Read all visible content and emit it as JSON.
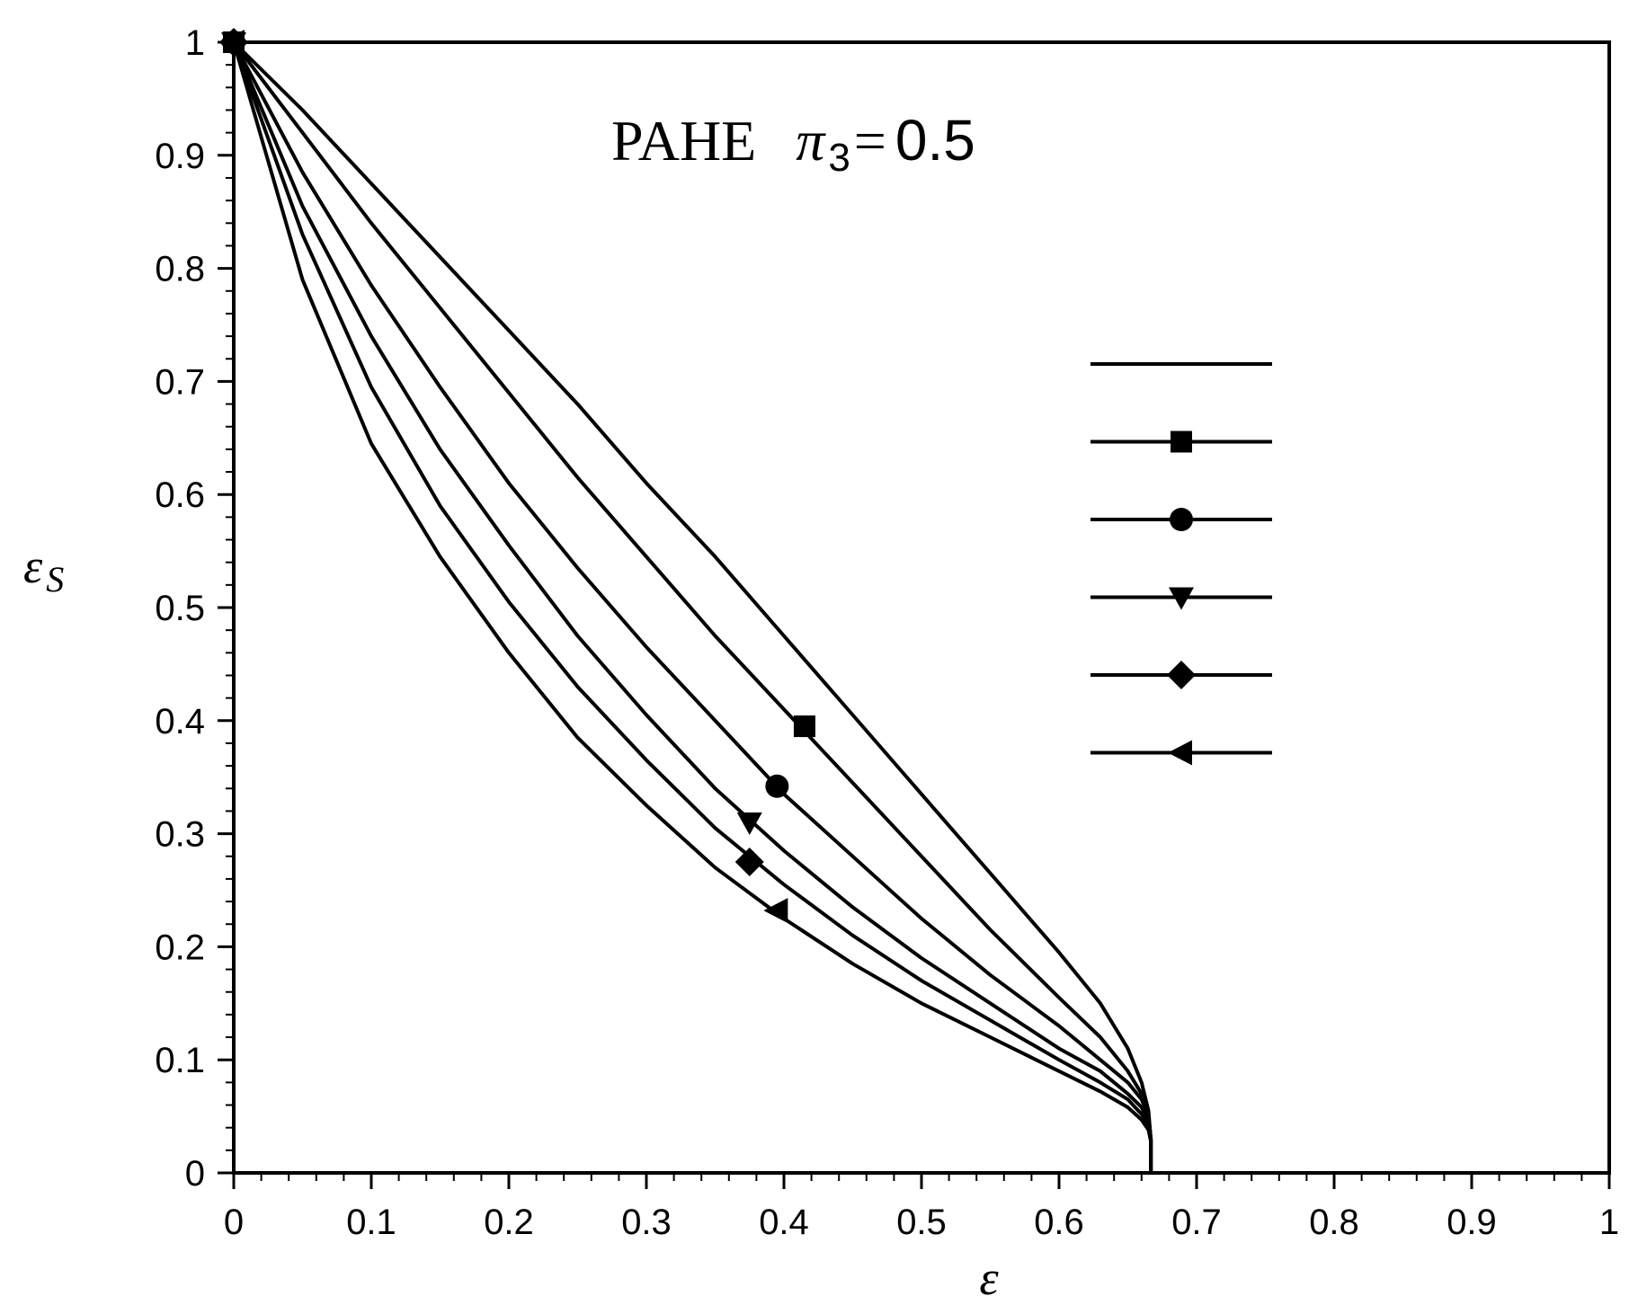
{
  "chart_data": {
    "type": "line",
    "title": {
      "prefix": "PAHE",
      "symbol": "π",
      "subscript": "3",
      "equals": "=",
      "value": "0.5"
    },
    "xlabel": "ε",
    "ylabel": "ε",
    "ylabel_subscript": "S",
    "xlim": [
      0,
      1
    ],
    "ylim": [
      0,
      1
    ],
    "xticks": [
      "0",
      "0.1",
      "0.2",
      "0.3",
      "0.4",
      "0.5",
      "0.6",
      "0.7",
      "0.8",
      "0.9",
      "1"
    ],
    "yticks": [
      "0",
      "0.1",
      "0.2",
      "0.3",
      "0.4",
      "0.5",
      "0.6",
      "0.7",
      "0.8",
      "0.9",
      "1"
    ],
    "grid": false,
    "legend": {
      "position": "right",
      "show_labels": false
    },
    "series": [
      {
        "marker": "none",
        "points": [
          [
            0,
            1
          ],
          [
            0.05,
            0.94
          ],
          [
            0.1,
            0.875
          ],
          [
            0.15,
            0.81
          ],
          [
            0.2,
            0.745
          ],
          [
            0.25,
            0.68
          ],
          [
            0.3,
            0.61
          ],
          [
            0.35,
            0.545
          ],
          [
            0.4,
            0.475
          ],
          [
            0.45,
            0.405
          ],
          [
            0.5,
            0.335
          ],
          [
            0.55,
            0.265
          ],
          [
            0.6,
            0.195
          ],
          [
            0.63,
            0.15
          ],
          [
            0.65,
            0.11
          ],
          [
            0.66,
            0.08
          ],
          [
            0.665,
            0.055
          ],
          [
            0.6667,
            0.03
          ],
          [
            0.6667,
            0
          ]
        ]
      },
      {
        "marker": "square",
        "marker_points": [
          [
            0,
            1
          ],
          [
            0.415,
            0.395
          ]
        ],
        "points": [
          [
            0,
            1
          ],
          [
            0.05,
            0.92
          ],
          [
            0.1,
            0.84
          ],
          [
            0.15,
            0.765
          ],
          [
            0.2,
            0.69
          ],
          [
            0.25,
            0.615
          ],
          [
            0.3,
            0.545
          ],
          [
            0.35,
            0.475
          ],
          [
            0.4,
            0.41
          ],
          [
            0.45,
            0.345
          ],
          [
            0.5,
            0.28
          ],
          [
            0.55,
            0.215
          ],
          [
            0.6,
            0.155
          ],
          [
            0.63,
            0.12
          ],
          [
            0.65,
            0.09
          ],
          [
            0.66,
            0.07
          ],
          [
            0.665,
            0.05
          ],
          [
            0.6667,
            0.03
          ],
          [
            0.6667,
            0
          ]
        ]
      },
      {
        "marker": "circle",
        "marker_points": [
          [
            0,
            1
          ],
          [
            0.395,
            0.342
          ]
        ],
        "points": [
          [
            0,
            1
          ],
          [
            0.05,
            0.885
          ],
          [
            0.1,
            0.785
          ],
          [
            0.15,
            0.695
          ],
          [
            0.2,
            0.61
          ],
          [
            0.25,
            0.535
          ],
          [
            0.3,
            0.465
          ],
          [
            0.35,
            0.4
          ],
          [
            0.4,
            0.335
          ],
          [
            0.45,
            0.28
          ],
          [
            0.5,
            0.225
          ],
          [
            0.55,
            0.175
          ],
          [
            0.6,
            0.13
          ],
          [
            0.63,
            0.1
          ],
          [
            0.65,
            0.08
          ],
          [
            0.66,
            0.065
          ],
          [
            0.665,
            0.05
          ],
          [
            0.6667,
            0.03
          ],
          [
            0.6667,
            0
          ]
        ]
      },
      {
        "marker": "triangle-down",
        "marker_points": [
          [
            0,
            1
          ],
          [
            0.375,
            0.31
          ]
        ],
        "points": [
          [
            0,
            1
          ],
          [
            0.05,
            0.855
          ],
          [
            0.1,
            0.74
          ],
          [
            0.15,
            0.64
          ],
          [
            0.2,
            0.555
          ],
          [
            0.25,
            0.475
          ],
          [
            0.3,
            0.405
          ],
          [
            0.35,
            0.34
          ],
          [
            0.4,
            0.285
          ],
          [
            0.45,
            0.235
          ],
          [
            0.5,
            0.19
          ],
          [
            0.55,
            0.15
          ],
          [
            0.6,
            0.11
          ],
          [
            0.63,
            0.09
          ],
          [
            0.65,
            0.07
          ],
          [
            0.66,
            0.058
          ],
          [
            0.665,
            0.045
          ],
          [
            0.6667,
            0.03
          ],
          [
            0.6667,
            0
          ]
        ]
      },
      {
        "marker": "diamond",
        "marker_points": [
          [
            0,
            1
          ],
          [
            0.375,
            0.275
          ]
        ],
        "points": [
          [
            0,
            1
          ],
          [
            0.05,
            0.83
          ],
          [
            0.1,
            0.695
          ],
          [
            0.15,
            0.59
          ],
          [
            0.2,
            0.505
          ],
          [
            0.25,
            0.43
          ],
          [
            0.3,
            0.365
          ],
          [
            0.35,
            0.305
          ],
          [
            0.4,
            0.255
          ],
          [
            0.45,
            0.21
          ],
          [
            0.5,
            0.17
          ],
          [
            0.55,
            0.135
          ],
          [
            0.6,
            0.1
          ],
          [
            0.63,
            0.08
          ],
          [
            0.65,
            0.065
          ],
          [
            0.66,
            0.052
          ],
          [
            0.665,
            0.042
          ],
          [
            0.6667,
            0.03
          ],
          [
            0.6667,
            0
          ]
        ]
      },
      {
        "marker": "triangle-left",
        "marker_points": [
          [
            0,
            1
          ],
          [
            0.395,
            0.232
          ]
        ],
        "points": [
          [
            0,
            1
          ],
          [
            0.05,
            0.79
          ],
          [
            0.1,
            0.645
          ],
          [
            0.15,
            0.545
          ],
          [
            0.2,
            0.46
          ],
          [
            0.25,
            0.385
          ],
          [
            0.3,
            0.325
          ],
          [
            0.35,
            0.27
          ],
          [
            0.4,
            0.225
          ],
          [
            0.45,
            0.185
          ],
          [
            0.5,
            0.15
          ],
          [
            0.55,
            0.12
          ],
          [
            0.6,
            0.09
          ],
          [
            0.63,
            0.072
          ],
          [
            0.65,
            0.058
          ],
          [
            0.66,
            0.047
          ],
          [
            0.665,
            0.038
          ],
          [
            0.6667,
            0.028
          ],
          [
            0.6667,
            0
          ]
        ]
      }
    ]
  }
}
